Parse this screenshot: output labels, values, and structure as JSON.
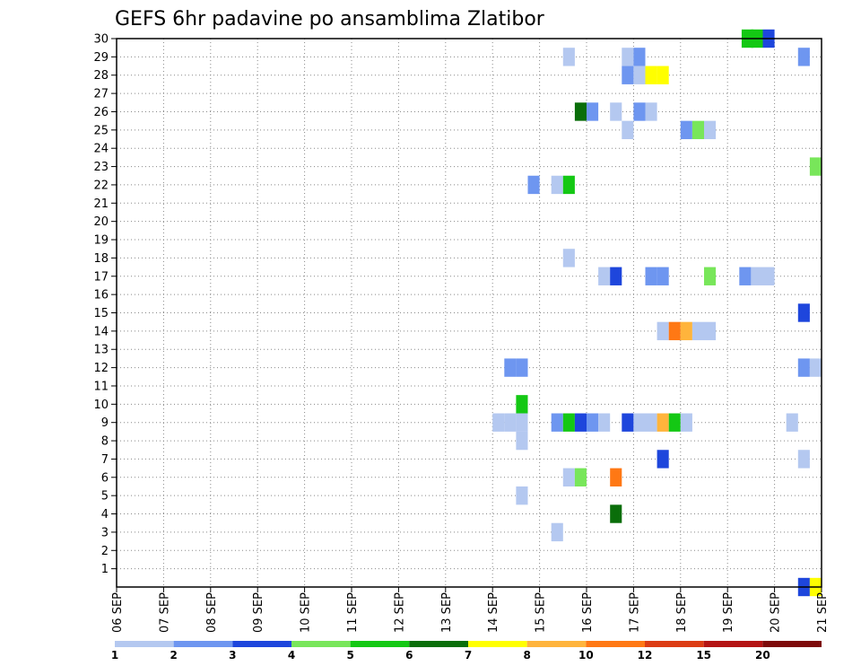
{
  "chart_data": {
    "type": "heatmap",
    "title": "GEFS 6hr padavine po ansamblima Zlatibor",
    "xlabel": "",
    "ylabel": "",
    "x_ticks": [
      "06 SEP",
      "07 SEP",
      "08 SEP",
      "09 SEP",
      "10 SEP",
      "11 SEP",
      "12 SEP",
      "13 SEP",
      "14 SEP",
      "15 SEP",
      "16 SEP",
      "17 SEP",
      "18 SEP",
      "19 SEP",
      "20 SEP",
      "21 SEP"
    ],
    "y_ticks": [
      1,
      2,
      3,
      4,
      5,
      6,
      7,
      8,
      9,
      10,
      11,
      12,
      13,
      14,
      15,
      16,
      17,
      18,
      19,
      20,
      21,
      22,
      23,
      24,
      25,
      26,
      27,
      28,
      29,
      30
    ],
    "xlim": [
      "06 SEP",
      "21 SEP"
    ],
    "ylim": [
      0,
      30
    ],
    "grid": true,
    "colorbar": {
      "levels": [
        1,
        2,
        3,
        4,
        5,
        6,
        7,
        8,
        10,
        12,
        15,
        20
      ],
      "colors": [
        "#b4c8f0",
        "#6e96f0",
        "#1e46dc",
        "#78e65a",
        "#14c814",
        "#0a6e0a",
        "#ffff00",
        "#ffb43c",
        "#ff7814",
        "#dc3c14",
        "#b41414",
        "#7d0a0a"
      ]
    },
    "cells": [
      {
        "day": 19.3,
        "member": 30,
        "value": 5
      },
      {
        "day": 19.5,
        "member": 30,
        "value": 5
      },
      {
        "day": 19.75,
        "member": 30,
        "value": 3
      },
      {
        "day": 15.5,
        "member": 29,
        "value": 1
      },
      {
        "day": 16.75,
        "member": 29,
        "value": 1
      },
      {
        "day": 17.0,
        "member": 29,
        "value": 2
      },
      {
        "day": 20.5,
        "member": 29,
        "value": 2
      },
      {
        "day": 16.75,
        "member": 28,
        "value": 2
      },
      {
        "day": 17.0,
        "member": 28,
        "value": 1
      },
      {
        "day": 17.25,
        "member": 28,
        "value": 7
      },
      {
        "day": 17.5,
        "member": 28,
        "value": 7
      },
      {
        "day": 15.75,
        "member": 26,
        "value": 6
      },
      {
        "day": 16.0,
        "member": 26,
        "value": 2
      },
      {
        "day": 16.5,
        "member": 26,
        "value": 1
      },
      {
        "day": 17.0,
        "member": 26,
        "value": 2
      },
      {
        "day": 17.25,
        "member": 26,
        "value": 1
      },
      {
        "day": 16.75,
        "member": 25,
        "value": 1
      },
      {
        "day": 18.0,
        "member": 25,
        "value": 2
      },
      {
        "day": 18.25,
        "member": 25,
        "value": 4
      },
      {
        "day": 18.5,
        "member": 25,
        "value": 1
      },
      {
        "day": 20.75,
        "member": 23,
        "value": 4
      },
      {
        "day": 14.75,
        "member": 22,
        "value": 2
      },
      {
        "day": 15.25,
        "member": 22,
        "value": 1
      },
      {
        "day": 15.5,
        "member": 22,
        "value": 5
      },
      {
        "day": 15.5,
        "member": 18,
        "value": 1
      },
      {
        "day": 16.25,
        "member": 17,
        "value": 1
      },
      {
        "day": 16.5,
        "member": 17,
        "value": 3
      },
      {
        "day": 17.25,
        "member": 17,
        "value": 2
      },
      {
        "day": 17.5,
        "member": 17,
        "value": 2
      },
      {
        "day": 18.5,
        "member": 17,
        "value": 4
      },
      {
        "day": 19.25,
        "member": 17,
        "value": 2
      },
      {
        "day": 19.5,
        "member": 17,
        "value": 1
      },
      {
        "day": 19.75,
        "member": 17,
        "value": 1
      },
      {
        "day": 20.5,
        "member": 15,
        "value": 3
      },
      {
        "day": 17.5,
        "member": 14,
        "value": 1
      },
      {
        "day": 17.75,
        "member": 14,
        "value": 10
      },
      {
        "day": 18.0,
        "member": 14,
        "value": 8
      },
      {
        "day": 18.25,
        "member": 14,
        "value": 1
      },
      {
        "day": 18.5,
        "member": 14,
        "value": 1
      },
      {
        "day": 14.25,
        "member": 12,
        "value": 2
      },
      {
        "day": 14.5,
        "member": 12,
        "value": 2
      },
      {
        "day": 20.5,
        "member": 12,
        "value": 2
      },
      {
        "day": 20.75,
        "member": 12,
        "value": 1
      },
      {
        "day": 14.5,
        "member": 10,
        "value": 5
      },
      {
        "day": 14.0,
        "member": 9,
        "value": 1
      },
      {
        "day": 14.25,
        "member": 9,
        "value": 1
      },
      {
        "day": 14.5,
        "member": 9,
        "value": 1
      },
      {
        "day": 15.25,
        "member": 9,
        "value": 2
      },
      {
        "day": 15.5,
        "member": 9,
        "value": 5
      },
      {
        "day": 15.75,
        "member": 9,
        "value": 3
      },
      {
        "day": 16.0,
        "member": 9,
        "value": 2
      },
      {
        "day": 16.25,
        "member": 9,
        "value": 1
      },
      {
        "day": 16.75,
        "member": 9,
        "value": 3
      },
      {
        "day": 17.0,
        "member": 9,
        "value": 1
      },
      {
        "day": 17.25,
        "member": 9,
        "value": 1
      },
      {
        "day": 17.5,
        "member": 9,
        "value": 8
      },
      {
        "day": 17.75,
        "member": 9,
        "value": 5
      },
      {
        "day": 18.0,
        "member": 9,
        "value": 1
      },
      {
        "day": 20.25,
        "member": 9,
        "value": 1
      },
      {
        "day": 14.5,
        "member": 8,
        "value": 1
      },
      {
        "day": 17.5,
        "member": 7,
        "value": 3
      },
      {
        "day": 20.5,
        "member": 7,
        "value": 1
      },
      {
        "day": 15.5,
        "member": 6,
        "value": 1
      },
      {
        "day": 15.75,
        "member": 6,
        "value": 4
      },
      {
        "day": 16.5,
        "member": 6,
        "value": 10
      },
      {
        "day": 14.5,
        "member": 5,
        "value": 1
      },
      {
        "day": 16.5,
        "member": 4,
        "value": 6
      },
      {
        "day": 15.25,
        "member": 3,
        "value": 1
      },
      {
        "day": 20.5,
        "member": 0,
        "value": 3
      },
      {
        "day": 20.75,
        "member": 0,
        "value": 7
      }
    ]
  }
}
